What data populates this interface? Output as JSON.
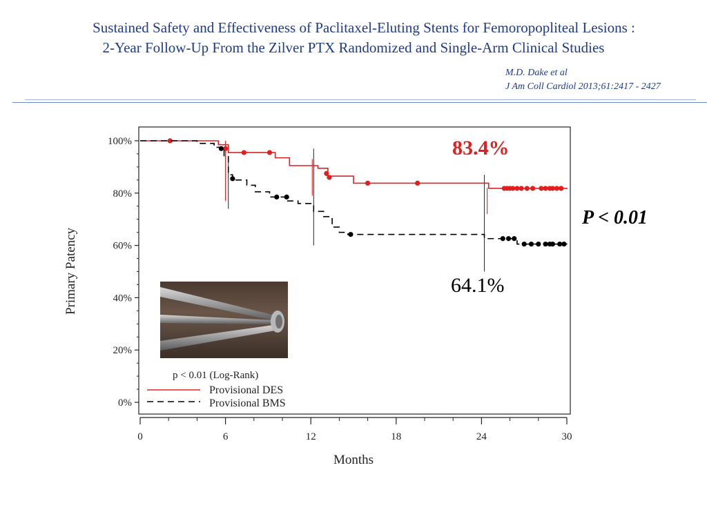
{
  "header": {
    "title_line1": "Sustained Safety and Effectiveness of Paclitaxel-Eluting Stents for Femoropopliteal Lesions :",
    "title_line2": "2-Year Follow-Up From the Zilver PTX Randomized and Single-Arm Clinical Studies",
    "author": "M.D.  Dake  et al",
    "journal": "J Am Coll Cardiol 2013;61:2417 - 2427"
  },
  "annotations": {
    "des_rate": "83.4%",
    "bms_rate": "64.1%",
    "p_value": "P < 0.01"
  },
  "colors": {
    "des": "#e02020",
    "bms": "#000000",
    "title": "#1f3b8a"
  },
  "chart_data": {
    "type": "line",
    "title": "",
    "xlabel": "Months",
    "ylabel": "Primary Patency",
    "xlim": [
      0,
      30
    ],
    "ylim": [
      0,
      100
    ],
    "x_ticks": [
      "0",
      "6",
      "12",
      "18",
      "24",
      "30"
    ],
    "y_ticks": [
      "0%",
      "20%",
      "40%",
      "60%",
      "80%",
      "100%"
    ],
    "legend_title": "p < 0.01 (Log-Rank)",
    "legend_position": "bottom-left",
    "series": [
      {
        "name": "Provisional DES",
        "style": "solid",
        "x": [
          0,
          5.5,
          6.2,
          9.5,
          10.5,
          12.5,
          13.2,
          15,
          24.5,
          30
        ],
        "y": [
          100,
          98.5,
          95.5,
          93.5,
          90.5,
          89.5,
          86.5,
          83.8,
          81.8,
          81.5
        ],
        "markers_x": [
          2.1,
          6.0,
          7.3,
          9.1,
          13.1,
          13.3,
          16.0,
          19.5,
          25.6,
          25.8,
          26.0,
          26.2,
          26.5,
          26.8,
          27.2,
          27.6,
          28.2,
          28.5,
          28.8,
          29.0,
          29.3,
          29.6
        ],
        "markers_y": [
          100,
          97,
          95.5,
          95.5,
          87.5,
          86,
          83.8,
          83.8,
          81.8,
          81.8,
          81.8,
          81.8,
          81.8,
          81.8,
          81.8,
          81.8,
          81.8,
          81.8,
          81.8,
          81.8,
          81.8,
          81.8
        ]
      },
      {
        "name": "Provisional BMS",
        "style": "dashed",
        "x": [
          0,
          4,
          5.2,
          5.9,
          6.2,
          6.5,
          7.5,
          8.1,
          9.1,
          10.2,
          11.1,
          12.2,
          12.9,
          13.5,
          14.0,
          14.6,
          24.2,
          25.4,
          26.5,
          30
        ],
        "y": [
          100,
          99,
          97.5,
          94,
          87,
          85,
          83,
          80.5,
          78.5,
          77,
          76,
          73,
          71,
          67,
          65,
          64.2,
          62.6,
          62.6,
          60.5,
          60.4
        ],
        "markers_x": [
          5.7,
          6.5,
          9.6,
          10.3,
          14.8,
          25.5,
          25.9,
          26.3,
          27.0,
          27.5,
          28.0,
          28.5,
          28.8,
          29.0,
          29.5,
          29.8
        ],
        "markers_y": [
          97,
          85.5,
          78.5,
          78.5,
          64.2,
          62.6,
          62.6,
          62.6,
          60.5,
          60.5,
          60.5,
          60.5,
          60.5,
          60.5,
          60.5,
          60.5
        ]
      }
    ],
    "milestones": [
      6,
      12,
      24
    ]
  }
}
